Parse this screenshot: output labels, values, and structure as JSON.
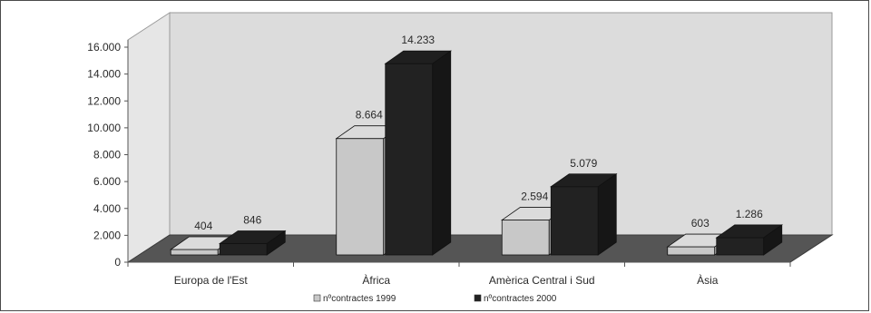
{
  "chart_data": {
    "type": "bar",
    "title": "",
    "xlabel": "",
    "ylabel": "",
    "categories": [
      "Europa de l'Est",
      "Àfrica",
      "Amèrica Central i Sud",
      "Àsia"
    ],
    "series": [
      {
        "name": "nºcontractes 1999",
        "values": [
          404,
          8664,
          2594,
          603
        ],
        "labels": [
          "404",
          "8.664",
          "2.594",
          "603"
        ],
        "color": "#c8c8c8"
      },
      {
        "name": "nºcontractes 2000",
        "values": [
          846,
          14233,
          5079,
          1286
        ],
        "labels": [
          "846",
          "14.233",
          "5.079",
          "1.286"
        ],
        "color": "#222222"
      }
    ],
    "ylim": [
      0,
      16000
    ],
    "yticks": [
      0,
      2000,
      4000,
      6000,
      8000,
      10000,
      12000,
      14000,
      16000
    ],
    "ytick_labels": [
      "0",
      "2.000",
      "4.000",
      "6.000",
      "8.000",
      "10.000",
      "12.000",
      "14.000",
      "16.000"
    ],
    "grid": false,
    "style": "3d-column",
    "wall_color": "#dcdcdc",
    "floor_color": "#555555",
    "legend_position": "bottom"
  }
}
